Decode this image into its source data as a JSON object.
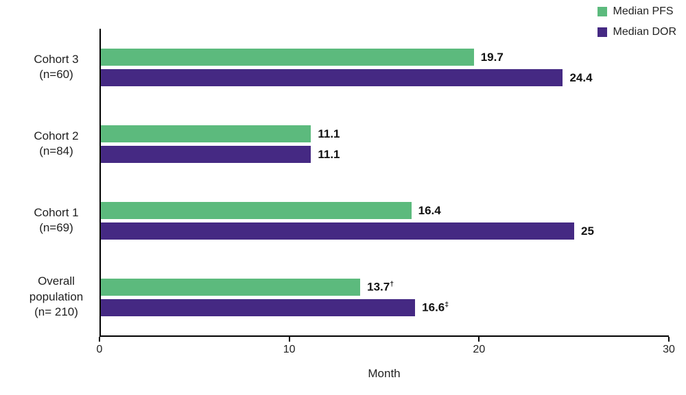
{
  "chart_data": {
    "type": "bar",
    "orientation": "horizontal",
    "title": "",
    "categories": [
      "Cohort 3\n(n=60)",
      "Cohort 2\n(n=84)",
      "Cohort 1\n(n=69)",
      "Overall\npopulation\n(n= 210)"
    ],
    "series": [
      {
        "name": "Median PFS",
        "color": "#5cba7d",
        "values": [
          19.7,
          11.1,
          16.4,
          13.7
        ],
        "value_labels": [
          "19.7",
          "11.1",
          "16.4",
          "13.7†"
        ]
      },
      {
        "name": "Median DOR",
        "color": "#452983",
        "values": [
          24.4,
          11.1,
          25,
          16.6
        ],
        "value_labels": [
          "24.4",
          "11.1",
          "25",
          "16.6‡"
        ]
      }
    ],
    "xlabel": "Month",
    "ylabel": "",
    "xlim": [
      0,
      30
    ],
    "xticks": [
      0,
      10,
      20,
      30
    ],
    "grid": false,
    "legend_position": "top-right",
    "axis_color": "#000000",
    "background": "#ffffff"
  }
}
